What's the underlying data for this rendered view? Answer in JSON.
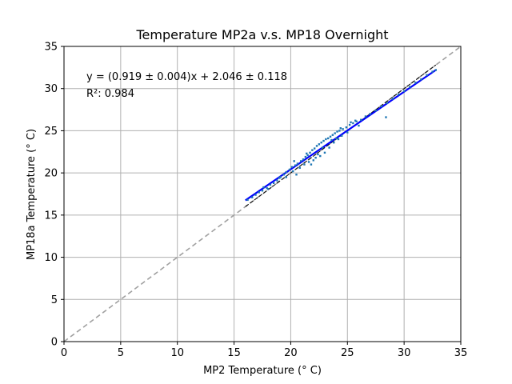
{
  "chart_data": {
    "type": "scatter",
    "title": "Temperature MP2a v.s. MP18 Overnight",
    "xlabel": "MP2 Temperature (° C)",
    "ylabel": "MP18a Temperature (° C)",
    "xlim": [
      0,
      35
    ],
    "ylim": [
      0,
      35
    ],
    "xticks": [
      0,
      5,
      10,
      15,
      20,
      25,
      30,
      35
    ],
    "yticks": [
      0,
      5,
      10,
      15,
      20,
      25,
      30,
      35
    ],
    "grid": true,
    "annotations": [
      "y = (0.919 ± 0.004)x + 2.046 ± 0.118",
      "R²: 0.984"
    ],
    "series": [
      {
        "kind": "scatter",
        "color": "#1f77b4",
        "points": [
          [
            16.2,
            16.8
          ],
          [
            16.6,
            17.1
          ],
          [
            16.9,
            17.4
          ],
          [
            17.2,
            17.7
          ],
          [
            17.5,
            17.9
          ],
          [
            17.9,
            18.2
          ],
          [
            18.2,
            18.6
          ],
          [
            18.5,
            18.8
          ],
          [
            18.8,
            19.1
          ],
          [
            19.1,
            19.5
          ],
          [
            19.4,
            19.8
          ],
          [
            19.6,
            20.1
          ],
          [
            19.9,
            20.4
          ],
          [
            20.1,
            20.7
          ],
          [
            20.4,
            20.9
          ],
          [
            20.6,
            21.1
          ],
          [
            20.9,
            21.4
          ],
          [
            21.1,
            21.6
          ],
          [
            21.3,
            21.9
          ],
          [
            21.5,
            22.1
          ],
          [
            21.7,
            22.4
          ],
          [
            21.9,
            22.7
          ],
          [
            22.1,
            22.9
          ],
          [
            22.3,
            23.2
          ],
          [
            22.5,
            23.4
          ],
          [
            22.7,
            23.6
          ],
          [
            22.9,
            23.8
          ],
          [
            23.1,
            24.0
          ],
          [
            23.3,
            24.1
          ],
          [
            23.5,
            24.3
          ],
          [
            23.7,
            24.5
          ],
          [
            23.9,
            24.7
          ],
          [
            24.1,
            24.9
          ],
          [
            24.3,
            25.0
          ],
          [
            24.6,
            25.2
          ],
          [
            24.9,
            25.4
          ],
          [
            25.2,
            25.7
          ],
          [
            25.5,
            25.9
          ],
          [
            25.8,
            26.1
          ],
          [
            26.2,
            26.3
          ],
          [
            26.6,
            26.7
          ],
          [
            27.0,
            27.0
          ],
          [
            27.5,
            27.4
          ],
          [
            28.0,
            27.9
          ],
          [
            28.5,
            28.3
          ],
          [
            29.0,
            28.8
          ],
          [
            29.5,
            29.3
          ],
          [
            30.0,
            29.7
          ],
          [
            30.5,
            30.2
          ],
          [
            31.0,
            30.7
          ],
          [
            31.5,
            31.1
          ],
          [
            32.0,
            31.6
          ],
          [
            32.5,
            32.0
          ],
          [
            32.8,
            32.2
          ],
          [
            18.0,
            18.1
          ],
          [
            19.0,
            19.4
          ],
          [
            20.2,
            20.2
          ],
          [
            20.8,
            20.6
          ],
          [
            21.2,
            21.0
          ],
          [
            21.6,
            21.3
          ],
          [
            22.0,
            21.5
          ],
          [
            22.2,
            21.8
          ],
          [
            22.6,
            22.0
          ],
          [
            23.0,
            22.4
          ],
          [
            23.4,
            23.0
          ],
          [
            23.8,
            23.6
          ],
          [
            24.2,
            24.0
          ],
          [
            24.5,
            24.4
          ],
          [
            25.0,
            24.8
          ],
          [
            19.6,
            19.5
          ],
          [
            20.5,
            19.8
          ],
          [
            21.8,
            21.0
          ],
          [
            22.4,
            22.2
          ],
          [
            23.6,
            23.9
          ],
          [
            24.0,
            24.1
          ],
          [
            24.4,
            25.3
          ],
          [
            25.3,
            26.0
          ],
          [
            25.7,
            26.2
          ],
          [
            26.0,
            25.6
          ],
          [
            28.4,
            26.6
          ],
          [
            21.4,
            22.3
          ],
          [
            22.8,
            23.0
          ],
          [
            20.3,
            21.4
          ],
          [
            17.6,
            18.3
          ]
        ]
      },
      {
        "kind": "fit-line",
        "color": "#0000ff",
        "x": [
          16,
          32.8
        ],
        "y": [
          16.75,
          32.2
        ]
      },
      {
        "kind": "reference-line",
        "color": "#000000",
        "x": [
          16,
          32.8
        ],
        "y": [
          16,
          32.8
        ]
      },
      {
        "kind": "identity-line",
        "color": "#a0a0a0",
        "x": [
          0,
          35
        ],
        "y": [
          0,
          35
        ]
      }
    ]
  }
}
